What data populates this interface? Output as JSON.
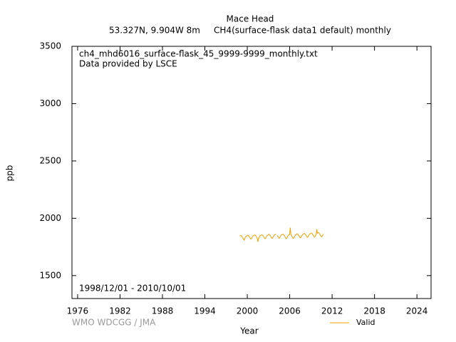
{
  "chart_data": {
    "type": "line",
    "title": "Mace Head",
    "subtitle": "53.327N, 9.904W 8m     CH4(surface-flask data1 default) monthly",
    "annotations": [
      "ch4_mhd6016_surface-flask_45_9999-9999_monthly.txt",
      "Data provided by LSCE",
      "1998/12/01 - 2010/10/01"
    ],
    "credit": "WMO WDCGG / JMA",
    "xlabel": "Year",
    "ylabel": "ppb",
    "legend": "bottom right",
    "xlim": [
      1975.2,
      2026
    ],
    "ylim": [
      1300,
      3500
    ],
    "xticks": [
      1976,
      1982,
      1988,
      1994,
      2000,
      2006,
      2012,
      2018,
      2024
    ],
    "yticks": [
      1500,
      2000,
      2500,
      3000,
      3500
    ],
    "x": [
      1998.92,
      1999.0,
      1999.08,
      1999.17,
      1999.25,
      1999.33,
      1999.42,
      1999.5,
      1999.58,
      1999.67,
      1999.75,
      1999.83,
      1999.92,
      2000.0,
      2000.08,
      2000.17,
      2000.25,
      2000.33,
      2000.42,
      2000.5,
      2000.58,
      2000.67,
      2000.75,
      2000.83,
      2000.92,
      2001.0,
      2001.08,
      2001.17,
      2001.25,
      2001.33,
      2001.42,
      2001.5,
      2001.58,
      2001.67,
      2001.75,
      2001.83,
      2001.92,
      2002.0,
      2002.08,
      2002.17,
      2002.25,
      2002.33,
      2002.42,
      2002.5,
      2002.58,
      2002.67,
      2002.75,
      2002.83,
      2002.92,
      2003.0,
      2003.08,
      2003.17,
      2003.25,
      2003.33,
      2003.42,
      2003.5,
      2003.58,
      2003.67,
      2003.75,
      2003.83,
      2003.92,
      2004.0,
      2004.08,
      2004.17,
      2004.25,
      2004.33,
      2004.42,
      2004.5,
      2004.58,
      2004.67,
      2004.75,
      2004.83,
      2004.92,
      2005.0,
      2005.08,
      2005.17,
      2005.25,
      2005.33,
      2005.42,
      2005.5,
      2005.58,
      2005.67,
      2005.75,
      2005.83,
      2005.92,
      2006.0,
      2006.08,
      2006.17,
      2006.25,
      2006.33,
      2006.42,
      2006.5,
      2006.58,
      2006.67,
      2006.75,
      2006.83,
      2006.92,
      2007.0,
      2007.08,
      2007.17,
      2007.25,
      2007.33,
      2007.42,
      2007.5,
      2007.58,
      2007.67,
      2007.75,
      2007.83,
      2007.92,
      2008.0,
      2008.08,
      2008.17,
      2008.25,
      2008.33,
      2008.42,
      2008.5,
      2008.58,
      2008.67,
      2008.75,
      2008.83,
      2008.92,
      2009.0,
      2009.08,
      2009.17,
      2009.25,
      2009.33,
      2009.42,
      2009.5,
      2009.58,
      2009.67,
      2009.75,
      2009.83,
      2009.92,
      2010.0,
      2010.08,
      2010.17,
      2010.25,
      2010.33,
      2010.42,
      2010.5,
      2010.58,
      2010.67,
      2010.75
    ],
    "series": [
      {
        "name": "Valid",
        "color": "#f0a000",
        "values": [
          1845,
          1848,
          1850,
          1846,
          1840,
          1832,
          1822,
          1815,
          1810,
          1826,
          1838,
          1843,
          1846,
          1850,
          1852,
          1849,
          1842,
          1835,
          1826,
          1818,
          1821,
          1830,
          1841,
          1847,
          1849,
          1853,
          1855,
          1850,
          1845,
          1836,
          1824,
          1795,
          1820,
          1833,
          1842,
          1849,
          1851,
          1855,
          1856,
          1852,
          1846,
          1838,
          1830,
          1822,
          1825,
          1835,
          1845,
          1850,
          1853,
          1858,
          1860,
          1855,
          1849,
          1840,
          1831,
          1825,
          1828,
          1838,
          1848,
          1855,
          1857,
          1860,
          1862,
          null,
          1850,
          1842,
          1834,
          1826,
          1829,
          1839,
          1849,
          1856,
          1858,
          1859,
          1861,
          1856,
          1849,
          1840,
          1830,
          1822,
          1826,
          1836,
          1847,
          1853,
          1856,
          1860,
          1918,
          1858,
          1850,
          1841,
          1832,
          1824,
          1828,
          1838,
          1849,
          1855,
          1858,
          1862,
          1864,
          1860,
          1853,
          1845,
          1836,
          1830,
          1832,
          1842,
          1852,
          1858,
          1861,
          1866,
          1868,
          1863,
          1857,
          1849,
          1840,
          1834,
          1837,
          1847,
          1857,
          1863,
          1866,
          1870,
          1872,
          1866,
          1860,
          1852,
          1843,
          1836,
          1840,
          1850,
          1860,
          1905,
          1869,
          1873,
          1875,
          1870,
          1862,
          1854,
          1845,
          1838,
          1842,
          1852,
          1862
        ]
      }
    ]
  }
}
